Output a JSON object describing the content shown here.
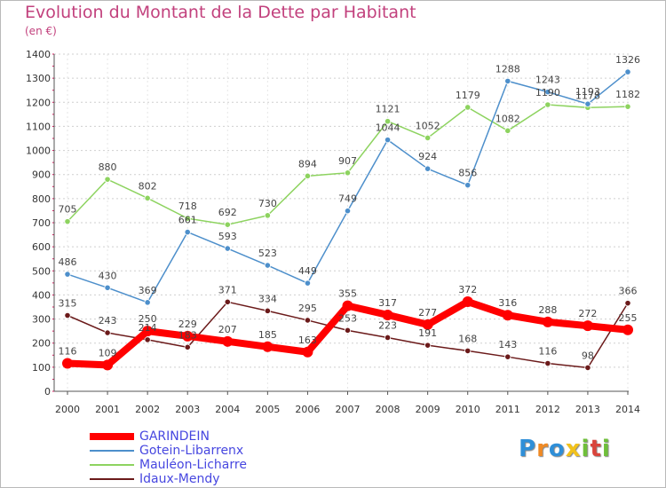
{
  "chart_data": {
    "type": "line",
    "title": "Evolution du Montant de la Dette par Habitant",
    "subtitle": "(en €)",
    "xlabel": "",
    "ylabel": "",
    "ylim": [
      0,
      1400
    ],
    "yticks": [
      "0",
      "100",
      "200",
      "300",
      "400",
      "500",
      "600",
      "700",
      "800",
      "900",
      "1000",
      "1100",
      "1200",
      "1300",
      "1400"
    ],
    "x": [
      "2000",
      "2001",
      "2002",
      "2003",
      "2004",
      "2005",
      "2006",
      "2007",
      "2008",
      "2009",
      "2010",
      "2011",
      "2012",
      "2013",
      "2014"
    ],
    "grid": "horizontal dashed",
    "legend_position": "bottom-left",
    "series": [
      {
        "name": "GARINDEIN",
        "color": "#ff0000",
        "values": [
          116,
          109,
          250,
          229,
          207,
          185,
          163,
          355,
          317,
          277,
          372,
          316,
          288,
          272,
          255
        ]
      },
      {
        "name": "Gotein-Libarrenx",
        "color": "#4d8fcb",
        "values": [
          486,
          430,
          369,
          661,
          593,
          523,
          449,
          749,
          1044,
          924,
          856,
          1288,
          1243,
          1193,
          1326
        ]
      },
      {
        "name": "Mauléon-Licharre",
        "color": "#8dd35f",
        "values": [
          705,
          880,
          802,
          718,
          692,
          730,
          894,
          907,
          1121,
          1052,
          1179,
          1082,
          1190,
          1178,
          1182
        ]
      },
      {
        "name": "Idaux-Mendy",
        "color": "#6b1a1a",
        "values": [
          315,
          243,
          214,
          183,
          371,
          334,
          295,
          253,
          223,
          191,
          168,
          143,
          116,
          98,
          366
        ]
      }
    ]
  },
  "brand": {
    "letters": [
      "P",
      "r",
      "o",
      "x",
      "i",
      "t",
      "i"
    ],
    "colors": [
      "#2f8fd8",
      "#f08a24",
      "#2f8fd8",
      "#f2c21b",
      "#6fbf3a",
      "#d9443c",
      "#6fbf3a"
    ]
  }
}
